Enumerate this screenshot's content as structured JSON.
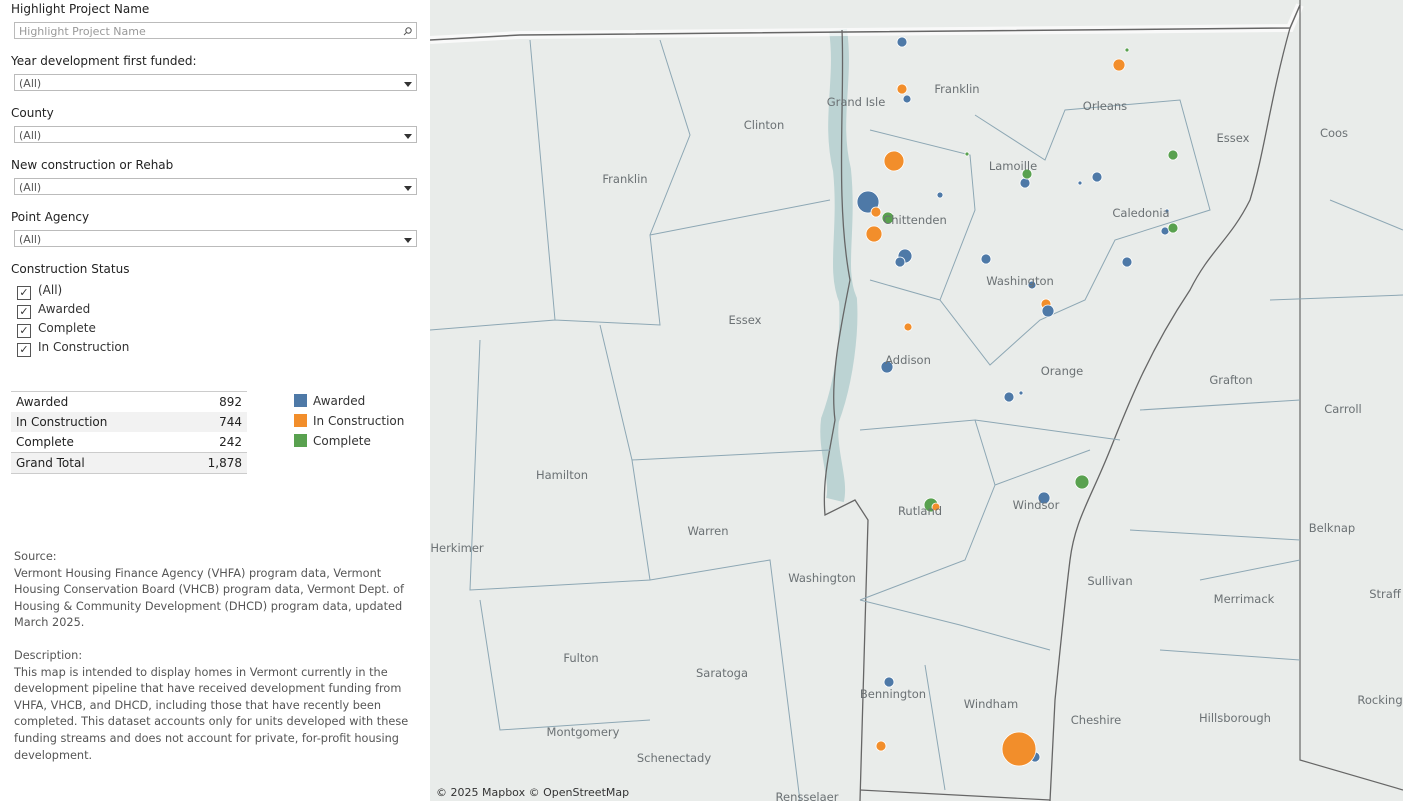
{
  "filters": {
    "highlight": {
      "label": "Highlight Project Name",
      "placeholder": "Highlight Project Name"
    },
    "dropdowns": [
      {
        "label": "Year development first funded:",
        "value": "(All)"
      },
      {
        "label": "County",
        "value": "(All)"
      },
      {
        "label": "New construction or Rehab",
        "value": "(All)"
      },
      {
        "label": "Point Agency",
        "value": "(All)"
      }
    ],
    "status": {
      "label": "Construction Status",
      "options": [
        "(All)",
        "Awarded",
        "Complete",
        "In Construction"
      ]
    }
  },
  "table": {
    "rows": [
      [
        "Awarded",
        892
      ],
      [
        "In Construction",
        744
      ],
      [
        "Complete",
        242
      ],
      [
        "Grand Total",
        "1,878"
      ]
    ]
  },
  "legend": [
    {
      "name": "Awarded",
      "color": "#4e79a7"
    },
    {
      "name": "In Construction",
      "color": "#f28e2b"
    },
    {
      "name": "Complete",
      "color": "#59a14f"
    }
  ],
  "source": {
    "heading": "Source:",
    "text": "Vermont Housing Finance Agency (VHFA) program data, Vermont Housing Conservation Board (VHCB) program data, Vermont Dept. of Housing & Community Development (DHCD) program data, updated March 2025."
  },
  "description": {
    "heading": "Description:",
    "text": "This map is intended to display homes in Vermont currently in the development pipeline that have received development funding from VHFA, VHCB, and DHCD, including those that have recently been completed. This dataset accounts only for units developed with these funding streams and does not account for private, for-profit housing development."
  },
  "map": {
    "labels": [
      "Franklin",
      "Grand Isle",
      "Orleans",
      "Clinton",
      "Essex",
      "Coos",
      "Franklin",
      "Lamoille",
      "Caledonia",
      "Chittenden",
      "Washington",
      "Essex",
      "Addison",
      "Orange",
      "Grafton",
      "Carroll",
      "Hamilton",
      "Warren",
      "Rutland",
      "Windsor",
      "Belknap",
      "Herkimer",
      "Washington",
      "Sullivan",
      "Merrimack",
      "Straff",
      "Fulton",
      "Saratoga",
      "Bennington",
      "Windham",
      "Cheshire",
      "Hillsborough",
      "Rocking",
      "Montgomery",
      "Schenectady",
      "Rensselaer"
    ],
    "attribution": "© 2025 Mapbox © OpenStreetMap"
  }
}
